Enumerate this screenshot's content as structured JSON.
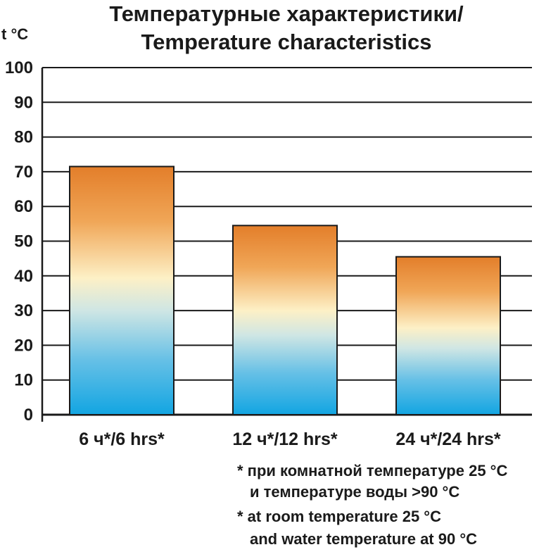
{
  "chart_data": {
    "type": "bar",
    "title": [
      "Температурные характеристики/",
      "Temperature characteristics"
    ],
    "ylabel": "t °C",
    "xlabel": "",
    "categories": [
      "6 ч*/6 hrs*",
      "12 ч*/12 hrs*",
      "24 ч*/24 hrs*"
    ],
    "values": [
      71.5,
      54.5,
      45.5
    ],
    "ylim": [
      0,
      100
    ],
    "yticks": [
      0,
      10,
      20,
      30,
      40,
      50,
      60,
      70,
      80,
      90,
      100
    ],
    "grid": true,
    "legend": "none",
    "footnotes": [
      "* при комнатной температуре 25 °C",
      "и температуре воды >90 °C",
      "* at room temperature 25 °C",
      "and water temperature at 90 °C"
    ],
    "colors": {
      "bar_top": "#e37e2a",
      "bar_mid": "#fdf2c9",
      "bar_bottom": "#12a5e2",
      "grid": "#1a1a1a",
      "bar_stroke": "#1a1a1a"
    }
  }
}
